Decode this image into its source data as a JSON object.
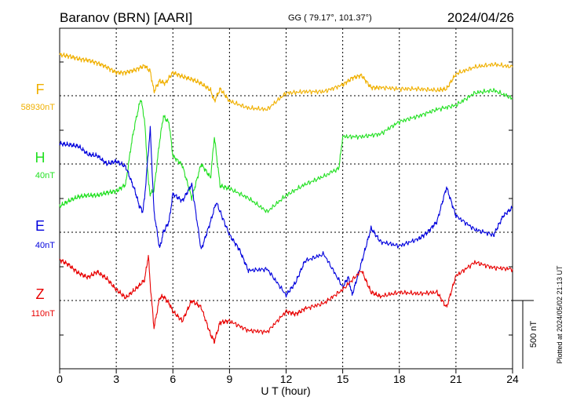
{
  "header": {
    "station": "Baranov (BRN)  [AARI]",
    "coords": "GG ( 79.17°, 101.37°)",
    "date": "2024/04/26"
  },
  "xaxis": {
    "label": "U T (hour)",
    "ticks": [
      "0",
      "3",
      "6",
      "9",
      "12",
      "15",
      "18",
      "21",
      "24"
    ]
  },
  "side": {
    "plotted": "Plotted at 2024/05/02 21:13 UT",
    "scale_label": "500 nT",
    "scale_nT": 500
  },
  "colors": {
    "F": "#f0b000",
    "H": "#22e022",
    "E": "#0000dd",
    "Z": "#e80000"
  },
  "chart_data": {
    "type": "line",
    "title": "Baranov (BRN)  [AARI]",
    "xlabel": "U T (hour)",
    "ylabel": "",
    "xlim": [
      0,
      24
    ],
    "grid": true,
    "series": [
      {
        "name": "F",
        "baseline": "58930nT",
        "unit_per_div": 500,
        "x": [
          0,
          0.5,
          1,
          1.5,
          2,
          2.5,
          3,
          3.5,
          4,
          4.5,
          4.8,
          5,
          5.3,
          5.6,
          6,
          6.5,
          7,
          7.5,
          8,
          8.2,
          8.5,
          9,
          10,
          11,
          12,
          13,
          14,
          15,
          15.5,
          16,
          16.5,
          17,
          18,
          19,
          20,
          20.5,
          21,
          22,
          23,
          24
        ],
        "y": [
          300,
          290,
          270,
          260,
          240,
          210,
          170,
          170,
          190,
          220,
          180,
          30,
          110,
          90,
          170,
          140,
          120,
          90,
          40,
          -40,
          50,
          -40,
          -90,
          -100,
          20,
          30,
          30,
          80,
          130,
          150,
          60,
          60,
          50,
          50,
          40,
          50,
          160,
          210,
          230,
          210
        ]
      },
      {
        "name": "H",
        "baseline": "40nT",
        "unit_per_div": 500,
        "x": [
          0,
          0.5,
          1,
          1.5,
          2,
          2.5,
          3,
          3.5,
          3.8,
          4,
          4.3,
          4.5,
          4.7,
          4.8,
          5,
          5.3,
          5.5,
          5.8,
          6,
          6.5,
          7,
          7.5,
          8,
          8.2,
          8.5,
          9,
          10,
          11,
          12,
          13,
          14,
          14.8,
          15,
          16,
          17,
          18,
          19,
          20,
          21,
          22,
          23,
          24
        ],
        "y": [
          -310,
          -270,
          -240,
          -230,
          -230,
          -210,
          -200,
          -150,
          150,
          300,
          480,
          320,
          -130,
          -220,
          -190,
          170,
          350,
          300,
          60,
          -10,
          -250,
          0,
          -100,
          200,
          -160,
          -180,
          -250,
          -350,
          -230,
          -150,
          -90,
          -30,
          200,
          200,
          220,
          310,
          350,
          400,
          430,
          520,
          540,
          480
        ]
      },
      {
        "name": "E",
        "baseline": "40nT",
        "unit_per_div": 500,
        "x": [
          0,
          0.5,
          1,
          1.5,
          2,
          2.5,
          3,
          3.5,
          4,
          4.2,
          4.4,
          4.5,
          4.8,
          5,
          5.3,
          5.5,
          5.8,
          6,
          6.5,
          7,
          7.5,
          8,
          8.3,
          9,
          9.5,
          10,
          11,
          12,
          12.5,
          13,
          14,
          15,
          15.3,
          15.5,
          16,
          16.5,
          17,
          18,
          19,
          19.5,
          20,
          20.5,
          21,
          22,
          23,
          23.5,
          24
        ],
        "y": [
          650,
          640,
          630,
          570,
          560,
          500,
          520,
          480,
          300,
          200,
          150,
          250,
          760,
          150,
          -120,
          0,
          80,
          280,
          230,
          350,
          -130,
          80,
          220,
          -20,
          -120,
          -280,
          -270,
          -460,
          -370,
          -210,
          -160,
          -400,
          -330,
          -460,
          -220,
          30,
          -70,
          -100,
          -50,
          0,
          80,
          330,
          120,
          20,
          -20,
          120,
          180
        ]
      },
      {
        "name": "Z",
        "baseline": "110nT",
        "unit_per_div": 500,
        "x": [
          0,
          0.5,
          1,
          1.5,
          2,
          2.5,
          3,
          3.5,
          4,
          4.5,
          4.7,
          4.8,
          5,
          5.3,
          5.5,
          5.8,
          6,
          6.5,
          7,
          7.5,
          8,
          8.2,
          8.5,
          9,
          10,
          11,
          12,
          12.5,
          13,
          14,
          15,
          16,
          16.5,
          17,
          18,
          19,
          20,
          20.5,
          21,
          22,
          23,
          24
        ],
        "y": [
          300,
          260,
          200,
          170,
          210,
          160,
          80,
          20,
          80,
          150,
          330,
          120,
          -200,
          20,
          30,
          -20,
          -80,
          -150,
          0,
          -50,
          -250,
          -300,
          -160,
          -150,
          -220,
          -230,
          -80,
          -100,
          -60,
          -20,
          80,
          220,
          60,
          30,
          60,
          50,
          60,
          -50,
          180,
          280,
          240,
          230
        ]
      }
    ],
    "scale_bar": "500 nT"
  }
}
